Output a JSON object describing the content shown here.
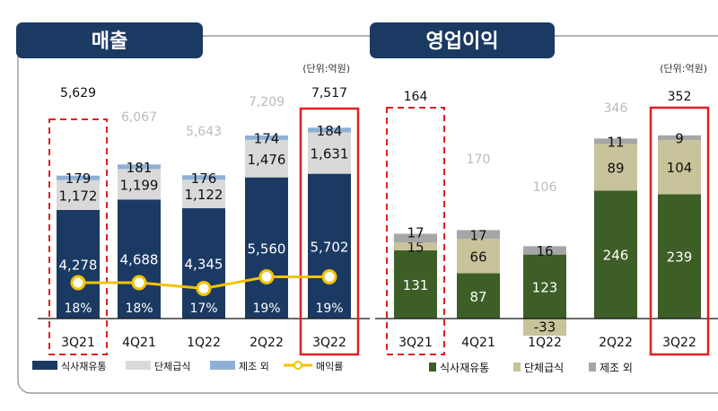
{
  "unit_label": "(단위:억원)",
  "colors": {
    "header": "#1b3a63",
    "navy": "#1b3a63",
    "lightgray": "#d9d9d9",
    "lightblue": "#8fb0d6",
    "yellow": "#f2c200",
    "green": "#3d5e26",
    "khaki": "#c8c39a",
    "gray": "#a6a6a6",
    "red": "#e02020"
  },
  "chart_data": [
    {
      "type": "bar",
      "title": "매출",
      "stacked": true,
      "categories": [
        "3Q21",
        "4Q21",
        "1Q22",
        "2Q22",
        "3Q22"
      ],
      "series": [
        {
          "name": "식사재유통",
          "values": [
            4278,
            4688,
            4345,
            5560,
            5702
          ]
        },
        {
          "name": "단체급식",
          "values": [
            1172,
            1199,
            1122,
            1476,
            1631
          ]
        },
        {
          "name": "제조 외",
          "values": [
            179,
            181,
            176,
            174,
            184
          ]
        }
      ],
      "totals": [
        "5,629",
        "6,067",
        "5,643",
        "7,209",
        "7,517"
      ],
      "line": {
        "name": "매익률",
        "type": "line",
        "values": [
          18,
          18,
          17,
          19,
          19
        ],
        "labels": [
          "18%",
          "18%",
          "17%",
          "19%",
          "19%"
        ]
      },
      "highlight": {
        "dashed": "3Q21",
        "solid": "3Q22"
      },
      "legend": "bottom"
    },
    {
      "type": "bar",
      "title": "영업이익",
      "stacked": true,
      "categories": [
        "3Q21",
        "4Q21",
        "1Q22",
        "2Q22",
        "3Q22"
      ],
      "series": [
        {
          "name": "식사재유통",
          "values": [
            131,
            87,
            123,
            246,
            239
          ]
        },
        {
          "name": "단체급식",
          "values": [
            15,
            66,
            -33,
            89,
            104
          ]
        },
        {
          "name": "제조 외",
          "values": [
            17,
            17,
            16,
            11,
            9
          ]
        }
      ],
      "totals": [
        "164",
        "170",
        "106",
        "346",
        "352"
      ],
      "highlight": {
        "dashed": "3Q21",
        "solid": "3Q22"
      },
      "legend": "bottom"
    }
  ]
}
